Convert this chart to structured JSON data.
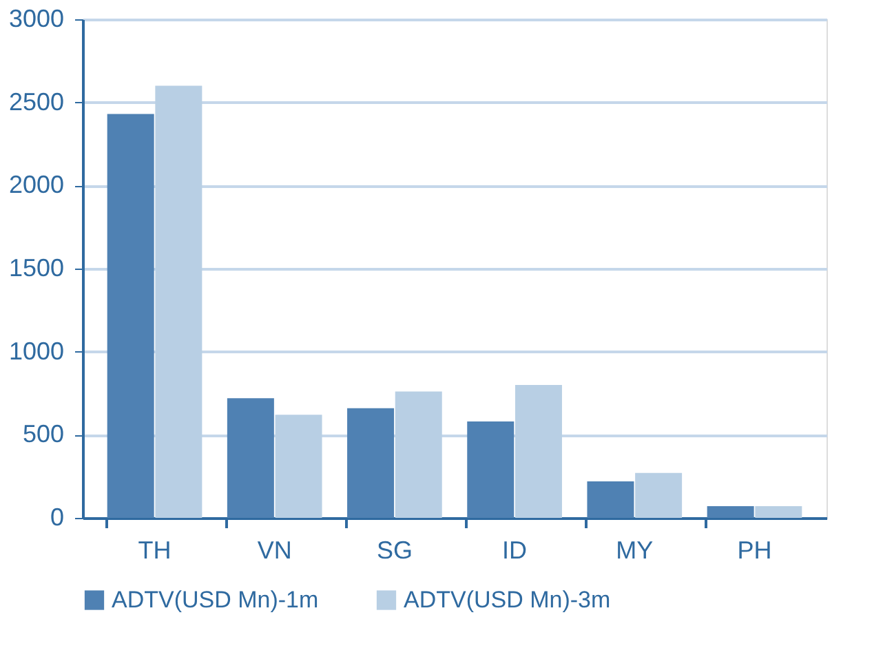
{
  "chart_data": {
    "type": "bar",
    "categories": [
      "TH",
      "VN",
      "SG",
      "ID",
      "MY",
      "PH"
    ],
    "series": [
      {
        "name": "ADTV(USD Mn)-1m",
        "color": "#4f81b3",
        "values": [
          2430,
          720,
          660,
          580,
          220,
          70
        ]
      },
      {
        "name": "ADTV(USD Mn)-3m",
        "color": "#b8cfe4",
        "values": [
          2600,
          620,
          760,
          800,
          270,
          70
        ]
      }
    ],
    "ylim": [
      0,
      3000
    ],
    "yticks": [
      0,
      500,
      1000,
      1500,
      2000,
      2500,
      3000
    ],
    "grid": "y",
    "legend": "bottom"
  }
}
